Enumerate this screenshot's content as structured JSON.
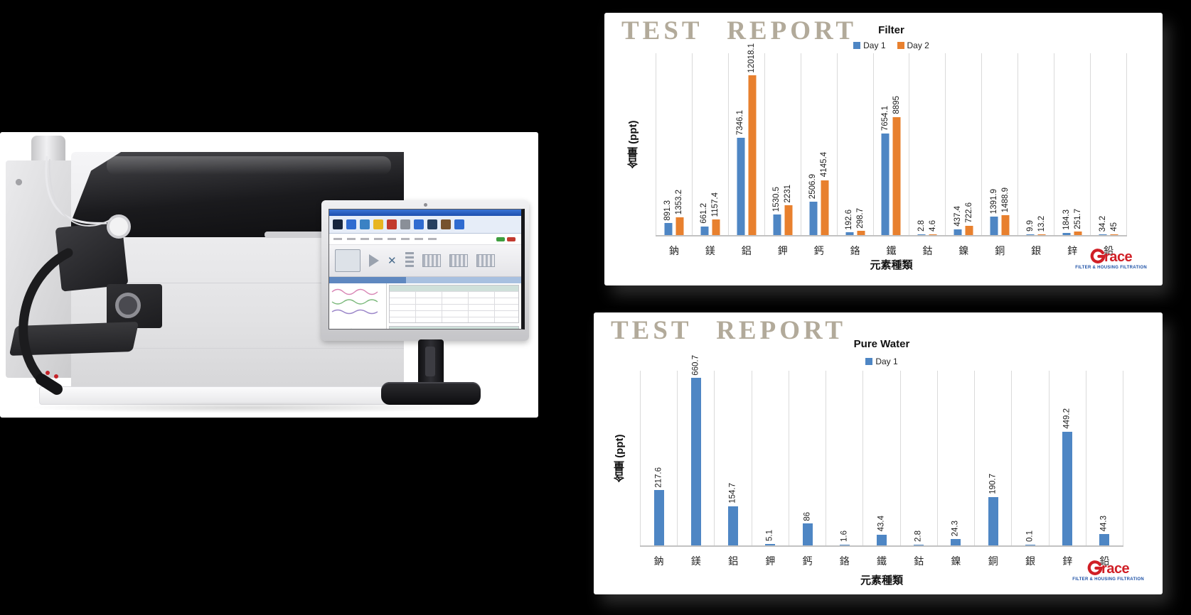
{
  "stamp": "TEST REPORT",
  "brand": {
    "name_g": "G",
    "name_rest": "race",
    "tagline": "FILTER & HOUSING FILTRATION",
    "red": "#d01f26",
    "blue": "#1b4fa5"
  },
  "colors": {
    "day1_blue": "#4e86c4",
    "day2_orange": "#e8802e",
    "gridline": "#dadada",
    "stamp_tan": "#b2aa9a"
  },
  "chart_data": [
    {
      "type": "bar",
      "title": "Filter",
      "categories": [
        "鈉",
        "鎂",
        "鋁",
        "鉀",
        "鈣",
        "鉻",
        "鐵",
        "鈷",
        "鎳",
        "銅",
        "銀",
        "鋅",
        "鉛"
      ],
      "series": [
        {
          "name": "Day 1",
          "color": "#4e86c4",
          "values": [
            891.3,
            661.2,
            7346.1,
            1530.5,
            2506.9,
            192.6,
            7654.1,
            2.8,
            437.4,
            1391.9,
            9.9,
            184.3,
            34.2
          ],
          "labels": [
            "891.3",
            "661.2",
            "7346.1",
            "1530.5",
            "2506.9",
            "192.6",
            "7654.1",
            "2.8",
            "437.4",
            "1391.9",
            "9.9",
            "184.3",
            "34.2"
          ]
        },
        {
          "name": "Day 2",
          "color": "#e8802e",
          "values": [
            1353.2,
            1157.4,
            12018.1,
            2231,
            4145.4,
            298.7,
            8895,
            4.6,
            722.6,
            1488.9,
            13.2,
            251.7,
            45
          ],
          "labels": [
            "1353.2",
            "1157.4",
            "12018.1",
            "2231",
            "4145.4",
            "298.7",
            "8895",
            "4.6",
            "722.6",
            "1488.9",
            "13.2",
            "251.7",
            "45"
          ]
        }
      ],
      "xlabel": "元素種類",
      "ylabel": "含量 (ppt)",
      "ylim": [
        0,
        13700
      ],
      "grid": "vertical-category-separators",
      "legend_position": "top",
      "value_labels": "rotated-90-above-bars"
    },
    {
      "type": "bar",
      "title": "Pure Water",
      "categories": [
        "鈉",
        "鎂",
        "鋁",
        "鉀",
        "鈣",
        "鉻",
        "鐵",
        "鈷",
        "鎳",
        "銅",
        "銀",
        "鋅",
        "鉛"
      ],
      "series": [
        {
          "name": "Day 1",
          "color": "#4e86c4",
          "values": [
            217.6,
            660.7,
            154.7,
            5.1,
            86,
            1.6,
            43.4,
            2.8,
            24.3,
            190.7,
            0.1,
            449.2,
            44.3
          ],
          "labels": [
            "217.6",
            "660.7",
            "154.7",
            "5.1",
            "86",
            "1.6",
            "43.4",
            "2.8",
            "24.3",
            "190.7",
            "0.1",
            "449.2",
            "44.3"
          ]
        }
      ],
      "xlabel": "元素種類",
      "ylabel": "含量 (ppt)",
      "ylim": [
        0,
        690
      ],
      "grid": "vertical-category-separators",
      "legend_position": "top",
      "value_labels": "rotated-90-above-bars"
    }
  ]
}
